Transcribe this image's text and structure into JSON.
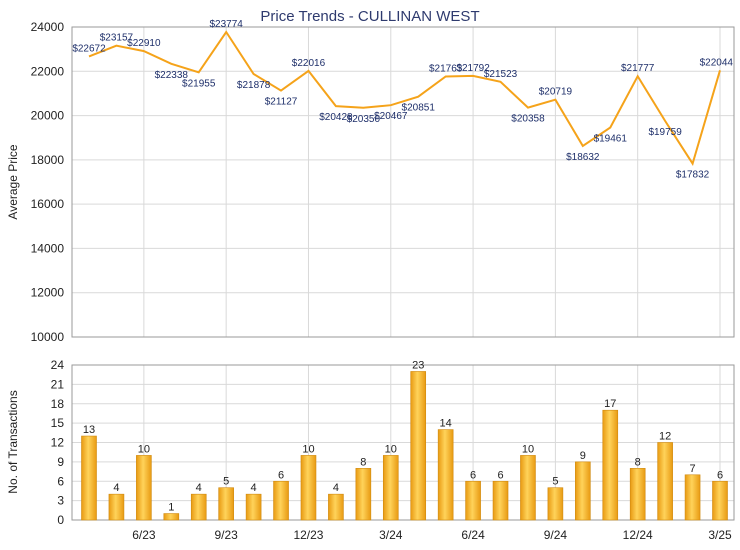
{
  "chart_data": [
    {
      "type": "line",
      "title": "Price Trends - CULLINAN WEST",
      "ylabel": "Average Price",
      "ylim": [
        10000,
        24000
      ],
      "yticks": [
        10000,
        12000,
        14000,
        16000,
        18000,
        20000,
        22000,
        24000
      ],
      "grid": true,
      "color": "#f5a31a",
      "values": [
        22672,
        23157,
        22910,
        22338,
        21955,
        23774,
        21878,
        21127,
        22016,
        20428,
        20350,
        20467,
        20851,
        21763,
        21792,
        21523,
        20358,
        20719,
        18632,
        19461,
        21777,
        19759,
        17832,
        22044
      ],
      "labels": [
        "$22672",
        "$23157",
        "$22910",
        "$22338",
        "$21955",
        "$23774",
        "$21878",
        "$21127",
        "$22016",
        "$20428",
        "$20350",
        "$20467",
        "$20851",
        "$21763",
        "$21792",
        "$21523",
        "$20358",
        "$20719",
        "$18632",
        "$19461",
        "$21777",
        "$19759",
        "$17832",
        "$22044"
      ]
    },
    {
      "type": "bar",
      "ylabel": "No. of Transactions",
      "ylim": [
        0,
        24
      ],
      "yticks": [
        0,
        3,
        6,
        9,
        12,
        15,
        18,
        21,
        24
      ],
      "grid": true,
      "color": "#f5a31a",
      "values": [
        13,
        4,
        10,
        1,
        4,
        5,
        4,
        6,
        10,
        4,
        8,
        10,
        23,
        14,
        6,
        6,
        10,
        5,
        9,
        17,
        8,
        12,
        7,
        6
      ],
      "xticks": [
        {
          "index": 2,
          "label": "6/23"
        },
        {
          "index": 5,
          "label": "9/23"
        },
        {
          "index": 8,
          "label": "12/23"
        },
        {
          "index": 11,
          "label": "3/24"
        },
        {
          "index": 14,
          "label": "6/24"
        },
        {
          "index": 17,
          "label": "9/24"
        },
        {
          "index": 20,
          "label": "12/24"
        },
        {
          "index": 23,
          "label": "3/25"
        }
      ]
    }
  ]
}
